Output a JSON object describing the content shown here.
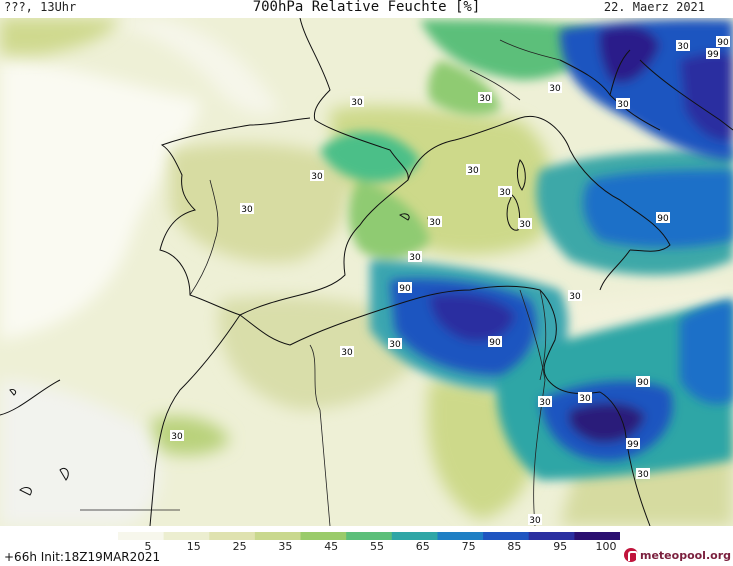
{
  "header": {
    "left": "???, 13Uhr",
    "title": "700hPa Relative Feuchte [%]",
    "date": "22. Maerz 2021"
  },
  "footer": {
    "init": "+66h  Init:18Z19MAR2021",
    "logo": "meteopool.org"
  },
  "legend": {
    "labels": [
      "5",
      "15",
      "25",
      "35",
      "45",
      "55",
      "65",
      "75",
      "85",
      "95",
      "100"
    ],
    "colors": [
      "#f7f7ec",
      "#eceed0",
      "#dfe2b0",
      "#c9d88e",
      "#9acb6a",
      "#5cbf7a",
      "#2fa6a6",
      "#1f7fc4",
      "#1f55c0",
      "#2a2fa0",
      "#2a0f70"
    ]
  },
  "contour_labels": [
    "30",
    "30",
    "30",
    "30",
    "30",
    "30",
    "30",
    "30",
    "30",
    "30",
    "30",
    "30",
    "30",
    "30",
    "30",
    "30",
    "30",
    "30",
    "90",
    "90",
    "90",
    "90",
    "90",
    "99",
    "99",
    "30",
    "30"
  ],
  "contour_labels_b": [
    "90",
    "90",
    "30"
  ]
}
